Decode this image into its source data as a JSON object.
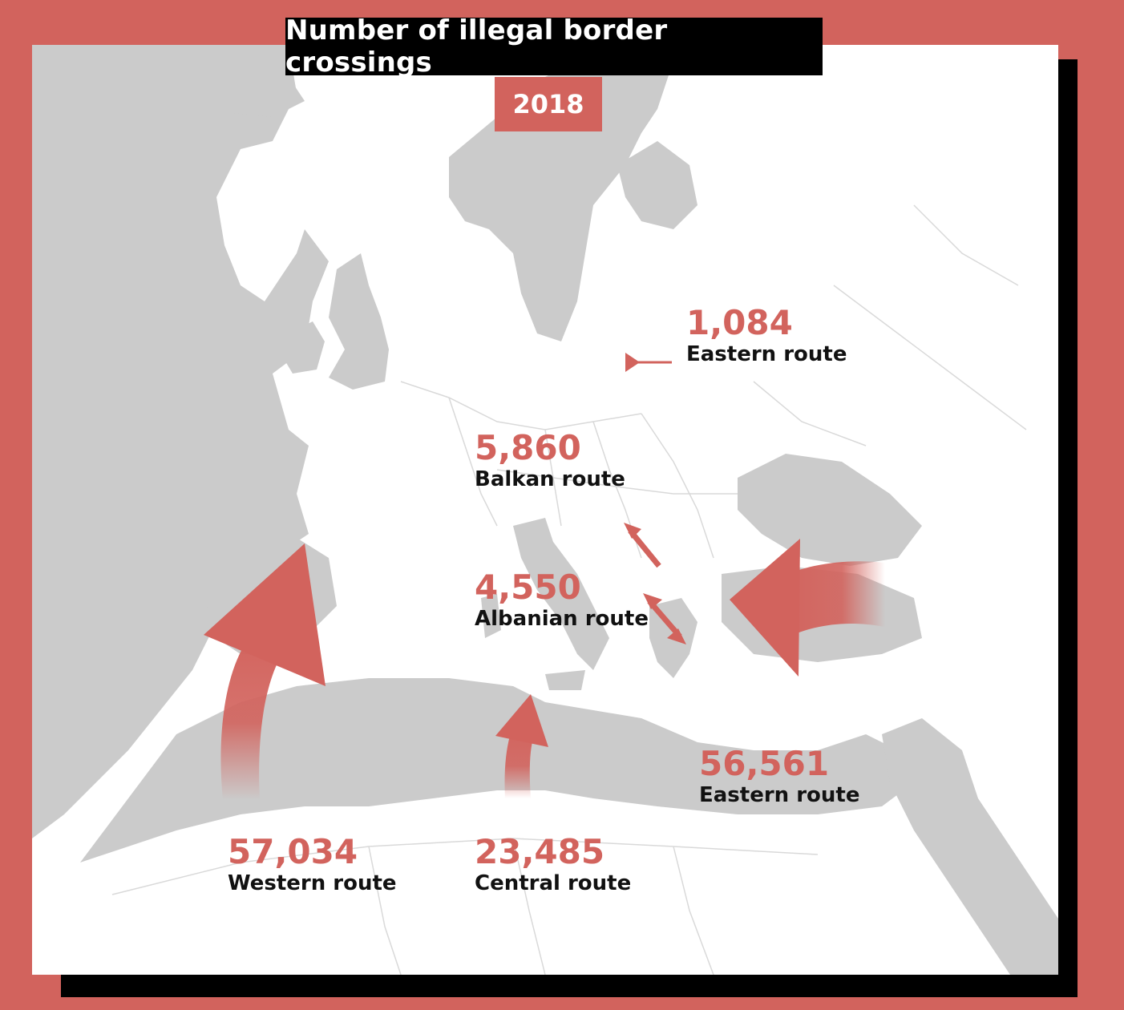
{
  "title": "Number of illegal border crossings",
  "year": "2018",
  "colors": {
    "frame": "#d2635d",
    "land": "#cbcbcb",
    "sea": "#ffffff",
    "accent": "#d2635d",
    "text": "#111111"
  },
  "routes": [
    {
      "id": "eastern-north",
      "value": "1,084",
      "name": "Eastern route",
      "arrow_icon": "thin-arrow-icon"
    },
    {
      "id": "balkan",
      "value": "5,860",
      "name": "Balkan route",
      "arrow_icon": "diagonal-arrow-icon"
    },
    {
      "id": "albanian",
      "value": "4,550",
      "name": "Albanian route",
      "arrow_icon": "double-arrow-icon"
    },
    {
      "id": "western",
      "value": "57,034",
      "name": "Western route",
      "arrow_icon": "curved-arrow-icon"
    },
    {
      "id": "central",
      "value": "23,485",
      "name": "Central route",
      "arrow_icon": "curved-arrow-icon"
    },
    {
      "id": "eastern-med",
      "value": "56,561",
      "name": "Eastern route",
      "arrow_icon": "curved-arrow-icon"
    }
  ]
}
